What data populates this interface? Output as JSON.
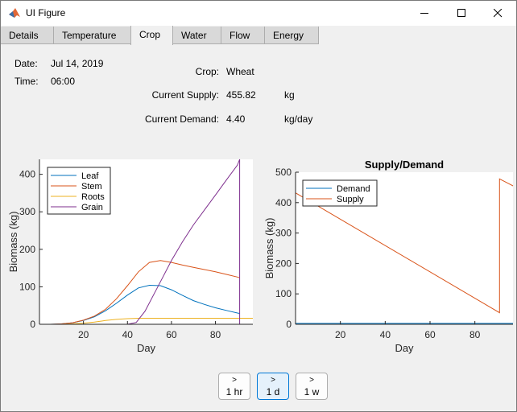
{
  "window": {
    "title": "UI Figure"
  },
  "tabs": [
    {
      "label": "Details"
    },
    {
      "label": "Temperature"
    },
    {
      "label": "Crop"
    },
    {
      "label": "Water"
    },
    {
      "label": "Flow"
    },
    {
      "label": "Energy"
    }
  ],
  "active_tab": "Crop",
  "info": {
    "date_label": "Date:",
    "date_value": "Jul 14, 2019",
    "time_label": "Time:",
    "time_value": "06:00",
    "crop_label": "Crop:",
    "crop_value": "Wheat",
    "supply_label": "Current Supply:",
    "supply_value": "455.82",
    "supply_unit": "kg",
    "demand_label": "Current Demand:",
    "demand_value": "4.40",
    "demand_unit": "kg/day"
  },
  "buttons": [
    {
      "arrow": ">",
      "label": "1 hr",
      "selected": false
    },
    {
      "arrow": ">",
      "label": "1 d",
      "selected": true
    },
    {
      "arrow": ">",
      "label": "1 w",
      "selected": false
    }
  ],
  "chart_data": [
    {
      "type": "line",
      "title": "",
      "xlabel": "Day",
      "ylabel": "Biomass (kg)",
      "xlim": [
        0,
        97
      ],
      "ylim": [
        0,
        440
      ],
      "xticks": [
        20,
        40,
        60,
        80
      ],
      "yticks": [
        0,
        100,
        200,
        300,
        400
      ],
      "legend": "top-left",
      "series": [
        {
          "name": "Leaf",
          "color": "#0072bd",
          "x": [
            5,
            10,
            15,
            20,
            25,
            30,
            35,
            40,
            45,
            50,
            55,
            60,
            65,
            70,
            75,
            80,
            85,
            90,
            91
          ],
          "y": [
            0,
            1,
            4,
            10,
            20,
            36,
            56,
            78,
            97,
            104,
            103,
            92,
            77,
            63,
            53,
            44,
            37,
            30,
            29
          ]
        },
        {
          "name": "Stem",
          "color": "#d95319",
          "x": [
            5,
            10,
            15,
            20,
            25,
            30,
            35,
            40,
            45,
            50,
            55,
            60,
            65,
            70,
            75,
            80,
            85,
            90,
            91
          ],
          "y": [
            0,
            1,
            4,
            11,
            22,
            40,
            68,
            103,
            140,
            165,
            170,
            165,
            158,
            152,
            146,
            140,
            133,
            126,
            124
          ]
        },
        {
          "name": "Roots",
          "color": "#edb120",
          "x": [
            5,
            10,
            15,
            20,
            25,
            30,
            35,
            40,
            45,
            50,
            60,
            70,
            80,
            90,
            97
          ],
          "y": [
            0,
            0,
            1,
            3,
            6,
            10,
            13,
            15,
            16,
            16,
            16,
            16,
            16,
            16,
            16
          ]
        },
        {
          "name": "Grain",
          "color": "#7e2f8e",
          "x": [
            5,
            40,
            44,
            48,
            52,
            56,
            60,
            65,
            70,
            75,
            80,
            85,
            90,
            91,
            91.01
          ],
          "y": [
            0,
            0,
            5,
            35,
            80,
            125,
            170,
            220,
            265,
            305,
            345,
            385,
            425,
            440,
            0
          ]
        }
      ]
    },
    {
      "type": "line",
      "title": "Supply/Demand",
      "xlabel": "Day",
      "ylabel": "Biomass (kg)",
      "xlim": [
        0,
        97
      ],
      "ylim": [
        0,
        500
      ],
      "xticks": [
        20,
        40,
        60,
        80
      ],
      "yticks": [
        0,
        100,
        200,
        300,
        400,
        500
      ],
      "legend": "top-left",
      "series": [
        {
          "name": "Demand",
          "color": "#0072bd",
          "x": [
            0,
            97
          ],
          "y": [
            3,
            3
          ]
        },
        {
          "name": "Supply",
          "color": "#d95319",
          "x": [
            0,
            91,
            91.01,
            97
          ],
          "y": [
            432,
            38,
            478,
            455
          ]
        }
      ]
    }
  ]
}
